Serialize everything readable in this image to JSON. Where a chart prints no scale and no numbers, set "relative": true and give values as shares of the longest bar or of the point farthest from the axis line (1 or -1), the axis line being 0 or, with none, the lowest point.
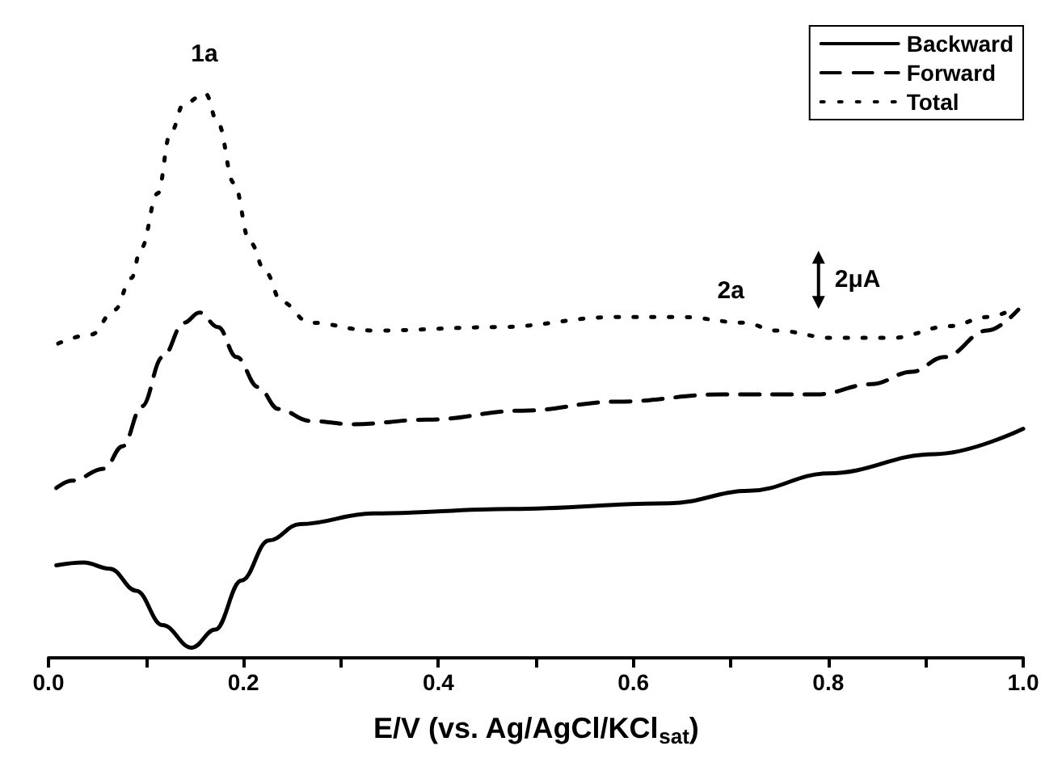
{
  "chart_data": {
    "type": "line",
    "relative": true,
    "xlabel": "E/V (vs. Ag/AgCl/KCl$_{sat}$)",
    "xlim": [
      0,
      1
    ],
    "xticks": [
      {
        "value": 0,
        "label": "0.0"
      },
      {
        "value": 0.1,
        "label": null
      },
      {
        "value": 0.2,
        "label": "0.2"
      },
      {
        "value": 0.3,
        "label": null
      },
      {
        "value": 0.4,
        "label": "0.4"
      },
      {
        "value": 0.5,
        "label": null
      },
      {
        "value": 0.6,
        "label": "0.6"
      },
      {
        "value": 0.7,
        "label": null
      },
      {
        "value": 0.8,
        "label": "0.8"
      },
      {
        "value": 0.9,
        "label": null
      },
      {
        "value": 1,
        "label": "1.0"
      }
    ],
    "grid": false,
    "legend": "top right",
    "marker": "none",
    "annotations": [
      "1a",
      "2a",
      "2μA"
    ],
    "series": [
      {
        "name": "Backward",
        "color": "#000000",
        "line_style": "solid",
        "x": [
          0.008,
          0.036,
          0.063,
          0.09,
          0.117,
          0.147,
          0.171,
          0.198,
          0.226,
          0.258,
          0.333,
          0.475,
          0.637,
          0.719,
          0.8,
          0.909,
          1.0
        ],
        "values": [
          0.164,
          0.169,
          0.158,
          0.119,
          0.058,
          0.018,
          0.05,
          0.137,
          0.208,
          0.237,
          0.256,
          0.264,
          0.274,
          0.296,
          0.327,
          0.361,
          0.406
        ]
      },
      {
        "name": "Forward",
        "color": "#000000",
        "line_style": "dashed",
        "x": [
          0.008,
          0.024,
          0.057,
          0.076,
          0.096,
          0.117,
          0.139,
          0.155,
          0.174,
          0.193,
          0.215,
          0.236,
          0.268,
          0.312,
          0.388,
          0.486,
          0.583,
          0.691,
          0.789,
          0.844,
          0.886,
          0.919,
          0.963,
          0.995
        ],
        "values": [
          0.301,
          0.314,
          0.335,
          0.375,
          0.446,
          0.533,
          0.594,
          0.612,
          0.586,
          0.533,
          0.48,
          0.441,
          0.42,
          0.414,
          0.422,
          0.438,
          0.454,
          0.467,
          0.467,
          0.485,
          0.507,
          0.533,
          0.58,
          0.617
        ]
      },
      {
        "name": "Total",
        "color": "#000000",
        "line_style": "dotted",
        "x": [
          0.01,
          0.044,
          0.068,
          0.085,
          0.095,
          0.112,
          0.125,
          0.139,
          0.161,
          0.174,
          0.19,
          0.207,
          0.223,
          0.239,
          0.268,
          0.333,
          0.459,
          0.583,
          0.649,
          0.714,
          0.746,
          0.805,
          0.865,
          0.925,
          0.963,
          0.992
        ],
        "values": [
          0.557,
          0.573,
          0.617,
          0.673,
          0.726,
          0.823,
          0.929,
          0.982,
          1.0,
          0.947,
          0.842,
          0.736,
          0.683,
          0.631,
          0.594,
          0.58,
          0.586,
          0.604,
          0.604,
          0.594,
          0.58,
          0.567,
          0.567,
          0.588,
          0.604,
          0.62
        ]
      }
    ]
  }
}
